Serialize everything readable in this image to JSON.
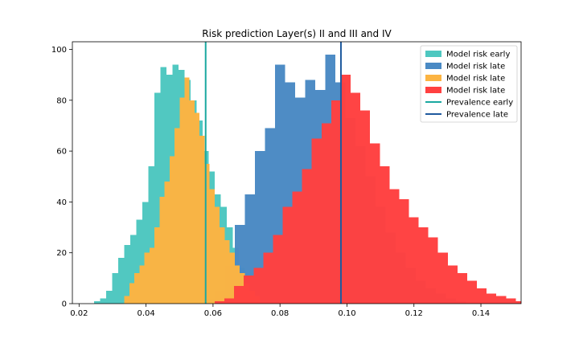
{
  "chart_data": {
    "type": "histogram",
    "title": "Risk prediction Layer(s) II and III and IV",
    "xlabel": "",
    "ylabel": "",
    "xlim": [
      0.018,
      0.152
    ],
    "ylim": [
      0,
      103
    ],
    "xticks": [
      0.02,
      0.04,
      0.06,
      0.08,
      0.1,
      0.12,
      0.14
    ],
    "xtick_labels": [
      "0.02",
      "0.04",
      "0.06",
      "0.08",
      "0.10",
      "0.12",
      "0.14"
    ],
    "yticks": [
      0,
      20,
      40,
      60,
      80,
      100
    ],
    "ytick_labels": [
      "0",
      "20",
      "40",
      "60",
      "80",
      "100"
    ],
    "grid": false,
    "legend_position": "top-right",
    "series": [
      {
        "name": "Model risk early",
        "color": "#4ec7c0",
        "bin_start": 0.0245,
        "bin_width": 0.0018,
        "counts": [
          1,
          2,
          5,
          12,
          18,
          23,
          27,
          33,
          40,
          54,
          83,
          93,
          90,
          94,
          92,
          88,
          80,
          72,
          60,
          52,
          43,
          38,
          30,
          22,
          14,
          10,
          6,
          3
        ]
      },
      {
        "name": "Model risk late",
        "color": "#4a8ac4",
        "bin_start": 0.0575,
        "bin_width": 0.003,
        "counts": [
          2,
          5,
          15,
          31,
          43,
          60,
          69,
          94,
          87,
          81,
          88,
          84,
          98,
          87,
          73,
          62,
          50,
          38,
          28,
          20,
          14,
          9,
          6,
          4,
          2,
          1
        ]
      },
      {
        "name": "Model risk late",
        "color": "#fcb442",
        "bin_start": 0.0335,
        "bin_width": 0.0015,
        "counts": [
          3,
          8,
          12,
          15,
          20,
          22,
          30,
          42,
          48,
          58,
          69,
          81,
          89,
          80,
          75,
          66,
          55,
          45,
          38,
          30,
          25,
          20,
          15,
          12,
          8,
          5,
          3
        ]
      },
      {
        "name": "Model risk late",
        "color": "#ff4040",
        "bin_start": 0.0605,
        "bin_width": 0.0029,
        "counts": [
          1,
          2,
          7,
          11,
          14,
          20,
          27,
          38,
          44,
          53,
          65,
          71,
          80,
          90,
          83,
          76,
          63,
          54,
          45,
          41,
          34,
          30,
          26,
          20,
          15,
          12,
          9,
          6,
          4,
          3,
          2,
          1
        ]
      }
    ],
    "vlines": [
      {
        "name": "Prevalence early",
        "color": "#1aa8a0",
        "x": 0.0578
      },
      {
        "name": "Prevalence late",
        "color": "#1f5a9e",
        "x": 0.0982
      }
    ]
  }
}
